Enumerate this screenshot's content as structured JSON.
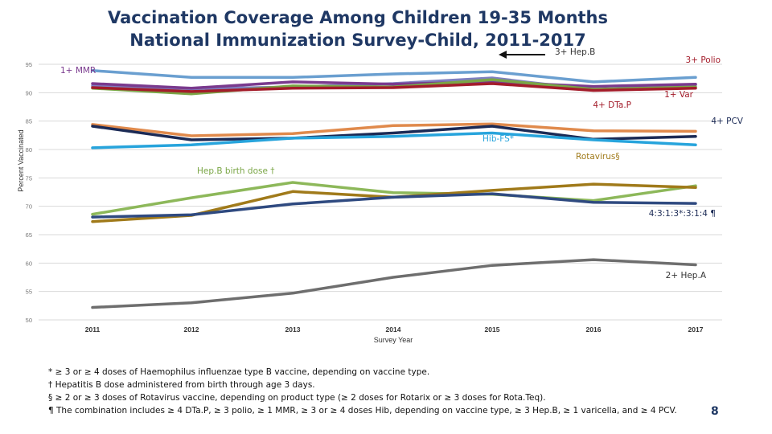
{
  "header": {
    "title_line1": "Vaccination Coverage Among Children 19-35  Months",
    "title_line2": "National  Immunization Survey-Child, 2011-2017"
  },
  "chart_data": {
    "type": "line",
    "title": "Vaccination Coverage Among Children 19-35 Months National Immunization Survey-Child, 2011-2017",
    "xlabel": "Survey Year",
    "ylabel": "Percent Vaccinated",
    "categories": [
      "2011",
      "2012",
      "2013",
      "2014",
      "2015",
      "2016",
      "2017"
    ],
    "yticks": [
      "50",
      "55",
      "60",
      "65",
      "70",
      "75",
      "80",
      "85",
      "90",
      "95"
    ],
    "ylim": [
      50,
      95
    ],
    "grid": true,
    "series": [
      {
        "name": "3+ Polio",
        "color": "#6a9fd0",
        "values": [
          93.9,
          92.7,
          92.7,
          93.3,
          93.7,
          91.9,
          92.7
        ]
      },
      {
        "name": "3+ Hep.B",
        "color": "#7f7fc0",
        "values": [
          91.2,
          90.7,
          91.0,
          91.6,
          92.6,
          90.5,
          91.4
        ]
      },
      {
        "name": "1+ MMR",
        "color": "#7a3a8e",
        "values": [
          91.6,
          90.8,
          91.9,
          91.5,
          91.9,
          91.1,
          91.5
        ]
      },
      {
        "name": "1+ Var",
        "color": "#7aa646",
        "values": [
          90.8,
          89.8,
          91.2,
          91.0,
          92.3,
          90.6,
          91.0
        ]
      },
      {
        "name": "4+ DTa.P",
        "color": "#a31c2a",
        "values": [
          90.9,
          90.2,
          90.8,
          90.9,
          91.6,
          90.4,
          90.8
        ]
      },
      {
        "name": "4+ PCV",
        "color": "#e08a4c",
        "values": [
          84.4,
          82.4,
          82.8,
          84.2,
          84.5,
          83.3,
          83.2
        ]
      },
      {
        "name": "Hib-FS",
        "color": "#1b2a55",
        "values": [
          84.1,
          81.7,
          82.0,
          82.9,
          84.1,
          81.8,
          82.3
        ]
      },
      {
        "name": "Rotavirus",
        "color": "#27a4dc",
        "values": [
          80.3,
          80.8,
          82.0,
          82.3,
          82.9,
          81.7,
          80.8
        ]
      },
      {
        "name": "Hep.B birth dose",
        "color": "#8db85a",
        "values": [
          68.6,
          71.5,
          74.2,
          72.4,
          72.1,
          71.0,
          73.6
        ]
      },
      {
        "name": "4:3:1:3*:3:1:4",
        "color": "#a07a1a",
        "values": [
          67.3,
          68.4,
          72.6,
          71.6,
          72.8,
          73.9,
          73.3
        ]
      },
      {
        "name": "4:3:1:3*:3:1:4 (combined)",
        "color": "#2f4a80",
        "values": [
          68.1,
          68.5,
          70.4,
          71.6,
          72.2,
          70.7,
          70.5
        ]
      },
      {
        "name": "2+ Hep.A",
        "color": "#6e6e6e",
        "values": [
          52.2,
          53.0,
          54.7,
          57.5,
          59.6,
          60.6,
          59.7
        ]
      }
    ],
    "annotations": {
      "mmr": "1+ MMR",
      "hepb3": "3+ Hep.B",
      "polio": "3+ Polio",
      "var": "1+ Var",
      "dtap": "4+ DTa.P",
      "pcv": "4+ PCV",
      "hib": "Hib-FS*",
      "rota": "Rotavirus§",
      "hepb_birth": "Hep.B birth dose †",
      "combined": "4:3:1:3*:3:1:4 ¶",
      "hepa": "2+ Hep.A"
    }
  },
  "footnotes": [
    "* ≥ 3 or ≥ 4 doses of Haemophilus influenzae type B vaccine, depending on vaccine type.",
    "† Hepatitis B dose administered from birth through age 3 days.",
    "§ ≥ 2 or ≥ 3 doses of Rotavirus vaccine, depending on product type (≥ 2 doses for Rotarix or ≥ 3 doses for Rota.Teq).",
    "¶ The combination includes ≥ 4 DTa.P, ≥ 3 polio, ≥ 1 MMR, ≥ 3 or ≥ 4 doses Hib, depending on vaccine type, ≥ 3 Hep.B, ≥ 1 varicella, and ≥ 4 PCV."
  ],
  "page_number": "8"
}
